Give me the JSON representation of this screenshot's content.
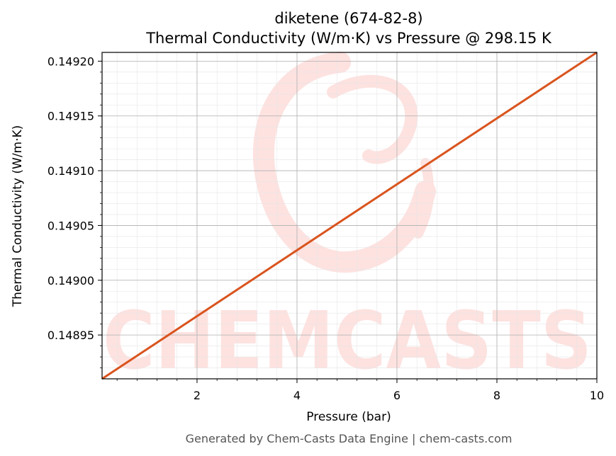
{
  "chart_data": {
    "type": "line",
    "title": "diketene (674-82-8)",
    "subtitle": "Thermal Conductivity (W/m·K) vs Pressure @ 298.15 K",
    "xlabel": "Pressure (bar)",
    "ylabel": "Thermal Conductivity (W/m·K)",
    "xlim": [
      0.1,
      10
    ],
    "ylim": [
      0.14891,
      0.149208
    ],
    "x_ticks": [
      2,
      4,
      6,
      8,
      10
    ],
    "x_tick_labels": [
      "2",
      "4",
      "6",
      "8",
      "10"
    ],
    "y_ticks": [
      0.14895,
      0.149,
      0.14905,
      0.1491,
      0.14915,
      0.1492
    ],
    "y_tick_labels": [
      "0.14895",
      "0.14900",
      "0.14905",
      "0.14910",
      "0.14915",
      "0.14920"
    ],
    "grid": true,
    "series": [
      {
        "color": "#d9541e",
        "x": [
          0.1,
          10
        ],
        "y": [
          0.14891,
          0.149208
        ]
      }
    ]
  },
  "watermark": {
    "text": "CHEMCASTS",
    "color": "#fde2e0"
  },
  "footer": "Generated by Chem-Casts Data Engine | chem-casts.com"
}
